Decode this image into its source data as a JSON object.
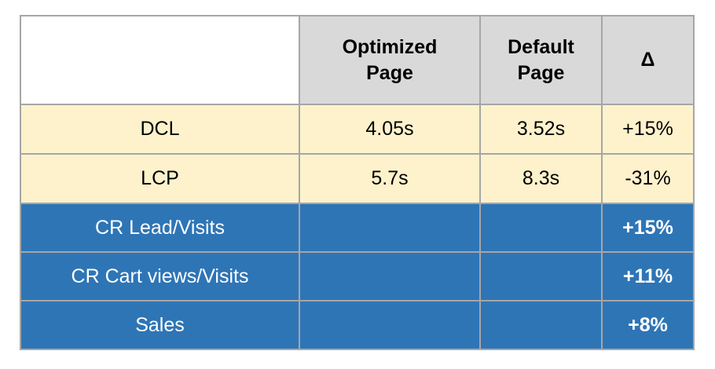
{
  "table": {
    "header": {
      "empty": "",
      "optimized": "Optimized\nPage",
      "default": "Default\nPage",
      "delta": "Δ"
    },
    "rows": [
      {
        "label": "DCL",
        "optimized": "4.05s",
        "default": "3.52s",
        "delta": "+15%"
      },
      {
        "label": "LCP",
        "optimized": "5.7s",
        "default": "8.3s",
        "delta": "-31%"
      },
      {
        "label": "CR Lead/Visits",
        "optimized": "",
        "default": "",
        "delta": "+15%"
      },
      {
        "label": "CR Cart views/Visits",
        "optimized": "",
        "default": "",
        "delta": "+11%"
      },
      {
        "label": "Sales",
        "optimized": "",
        "default": "",
        "delta": "+8%"
      }
    ],
    "colors": {
      "header_bg": "#d9d9d9",
      "metric_row_bg": "#fdf2cc",
      "highlight_row_bg": "#2e75b6",
      "border": "#a6a6a6",
      "text_dark": "#000000",
      "text_light": "#ffffff"
    }
  },
  "chart_data": {
    "type": "table",
    "columns": [
      "",
      "Optimized Page",
      "Default Page",
      "Δ"
    ],
    "rows": [
      [
        "DCL",
        "4.05s",
        "3.52s",
        "+15%"
      ],
      [
        "LCP",
        "5.7s",
        "8.3s",
        "-31%"
      ],
      [
        "CR Lead/Visits",
        "",
        "",
        "+15%"
      ],
      [
        "CR Cart views/Visits",
        "",
        "",
        "+11%"
      ],
      [
        "Sales",
        "",
        "",
        "+8%"
      ]
    ],
    "notes": {
      "row_groups": [
        {
          "rows": [
            "DCL",
            "LCP"
          ],
          "style": "cream performance metrics"
        },
        {
          "rows": [
            "CR Lead/Visits",
            "CR Cart views/Visits",
            "Sales"
          ],
          "style": "blue conversion metrics, delta only"
        }
      ]
    }
  }
}
